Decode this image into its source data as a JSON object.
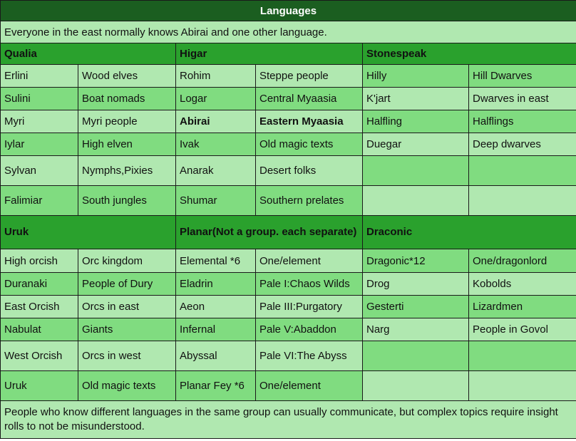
{
  "title": "Languages",
  "intro": "Everyone in the east normally knows Abirai and one other language.",
  "sections": [
    {
      "groups": [
        "Qualia",
        "Higar",
        "Stonespeak"
      ],
      "rows": [
        [
          "Erlini",
          "Wood elves",
          "Rohim",
          "Steppe people",
          "Hilly",
          "Hill Dwarves"
        ],
        [
          "Sulini",
          "Boat nomads",
          "Logar",
          "Central Myaasia",
          "K'jart",
          "Dwarves in east"
        ],
        [
          "Myri",
          "Myri people",
          "Abirai",
          "Eastern Myaasia",
          "Halfling",
          "Halflings"
        ],
        [
          "Iylar",
          "High elven",
          "Ivak",
          "Old magic texts",
          "Duegar",
          "Deep dwarves"
        ],
        [
          "Sylvan",
          "Nymphs,Pixies",
          "Anarak",
          "Desert folks",
          "",
          ""
        ],
        [
          "Falimiar",
          "South jungles",
          "Shumar",
          "Southern prelates",
          "",
          ""
        ]
      ]
    },
    {
      "groups": [
        "Uruk",
        "Planar(Not a group. each separate)",
        "Draconic"
      ],
      "rows": [
        [
          "High orcish",
          "Orc kingdom",
          "Elemental *6",
          "One/element",
          "Dragonic*12",
          "One/dragonlord"
        ],
        [
          "Duranaki",
          "People of Dury",
          "Eladrin",
          "Pale I:Chaos Wilds",
          "Drog",
          "Kobolds"
        ],
        [
          "East Orcish",
          "Orcs in east",
          "Aeon",
          "Pale III:Purgatory",
          "Gesterti",
          "Lizardmen"
        ],
        [
          "Nabulat",
          "Giants",
          "Infernal",
          "Pale V:Abaddon",
          "Narg",
          "People in Govol"
        ],
        [
          "West Orcish",
          "Orcs in west",
          "Abyssal",
          "Pale VI:The Abyss",
          "",
          ""
        ],
        [
          "Uruk",
          "Old magic texts",
          "Planar Fey *6",
          "One/element",
          "",
          ""
        ]
      ]
    }
  ],
  "footer": "People who know different languages in the same group can usually communicate, but complex topics require insight rolls to not be misunderstood.",
  "colors": {
    "title_bg": "#1b5e20",
    "group_bg": "#2aa12d",
    "light_cell": "#b0e8b0",
    "mid_cell": "#80dc80"
  }
}
